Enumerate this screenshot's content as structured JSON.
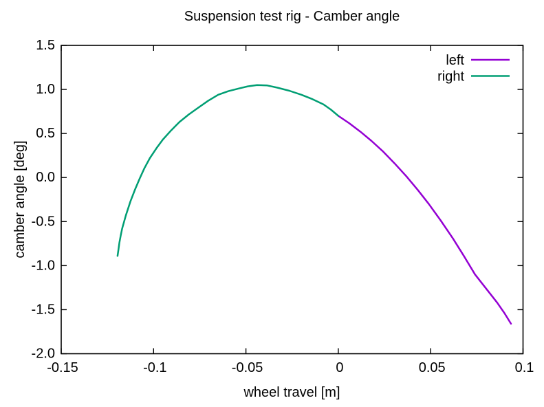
{
  "chart_data": {
    "type": "line",
    "title": "Suspension test rig - Camber angle",
    "xlabel": "wheel travel [m]",
    "ylabel": "camber angle [deg]",
    "xlim": [
      -0.15,
      0.1
    ],
    "ylim": [
      -2.0,
      1.5
    ],
    "grid": false,
    "legend": {
      "position": "top-right",
      "box": false,
      "entries": [
        "left",
        "right"
      ]
    },
    "axis_color": "#000000",
    "background_color": "#ffffff",
    "xticks": {
      "values": [
        -0.15,
        -0.1,
        -0.05,
        0,
        0.05,
        0.1
      ],
      "labels": [
        "-0.15",
        "-0.1",
        "-0.05",
        "0",
        "0.05",
        "0.1"
      ]
    },
    "yticks": {
      "values": [
        1.5,
        1.0,
        0.5,
        0.0,
        -0.5,
        -1.0,
        -1.5,
        -2.0
      ],
      "labels": [
        "1.5",
        "1.0",
        "0.5",
        "0.0",
        "-0.5",
        "-1.0",
        "-1.5",
        "-2.0"
      ]
    },
    "series": [
      {
        "name": "left",
        "color": "#9400d3",
        "points": [
          [
            0.0,
            0.7
          ],
          [
            0.006,
            0.615
          ],
          [
            0.012,
            0.52
          ],
          [
            0.018,
            0.415
          ],
          [
            0.024,
            0.3
          ],
          [
            0.0305,
            0.16
          ],
          [
            0.037,
            0.01
          ],
          [
            0.043,
            -0.14
          ],
          [
            0.049,
            -0.3
          ],
          [
            0.0555,
            -0.49
          ],
          [
            0.062,
            -0.69
          ],
          [
            0.068,
            -0.89
          ],
          [
            0.074,
            -1.1
          ],
          [
            0.08,
            -1.26
          ],
          [
            0.086,
            -1.42
          ],
          [
            0.09,
            -1.54
          ],
          [
            0.0935,
            -1.66
          ]
        ]
      },
      {
        "name": "right",
        "color": "#009e73",
        "points": [
          [
            -0.1195,
            -0.89
          ],
          [
            -0.119,
            -0.815
          ],
          [
            -0.1185,
            -0.74
          ],
          [
            -0.1178,
            -0.66
          ],
          [
            -0.117,
            -0.58
          ],
          [
            -0.115,
            -0.43
          ],
          [
            -0.1125,
            -0.27
          ],
          [
            -0.11,
            -0.135
          ],
          [
            -0.1075,
            -0.01
          ],
          [
            -0.105,
            0.105
          ],
          [
            -0.102,
            0.22
          ],
          [
            -0.0985,
            0.33
          ],
          [
            -0.095,
            0.43
          ],
          [
            -0.0905,
            0.535
          ],
          [
            -0.086,
            0.63
          ],
          [
            -0.081,
            0.715
          ],
          [
            -0.076,
            0.79
          ],
          [
            -0.0705,
            0.87
          ],
          [
            -0.065,
            0.94
          ],
          [
            -0.0595,
            0.98
          ],
          [
            -0.054,
            1.01
          ],
          [
            -0.049,
            1.035
          ],
          [
            -0.044,
            1.05
          ],
          [
            -0.0385,
            1.045
          ],
          [
            -0.033,
            1.02
          ],
          [
            -0.0265,
            0.985
          ],
          [
            -0.02,
            0.94
          ],
          [
            -0.014,
            0.89
          ],
          [
            -0.008,
            0.83
          ],
          [
            -0.004,
            0.77
          ],
          [
            0.0,
            0.7
          ]
        ]
      }
    ]
  }
}
